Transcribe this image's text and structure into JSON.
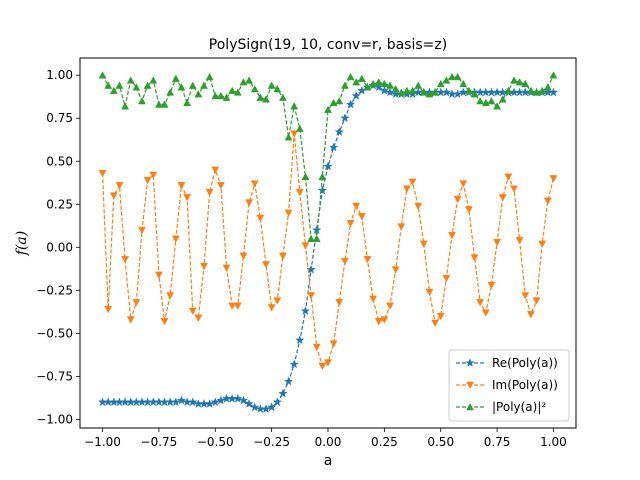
{
  "chart_data": {
    "type": "line",
    "title": "PolySign(19, 10, conv=r, basis=z)",
    "xlabel": "a",
    "ylabel": "f(a)",
    "xlim": [
      -1.1,
      1.1
    ],
    "ylim": [
      -1.05,
      1.1
    ],
    "xticks": [
      -1.0,
      -0.75,
      -0.5,
      -0.25,
      0.0,
      0.25,
      0.5,
      0.75,
      1.0
    ],
    "xtick_labels": [
      "−1.00",
      "−0.75",
      "−0.50",
      "−0.25",
      "0.00",
      "0.25",
      "0.50",
      "0.75",
      "1.00"
    ],
    "yticks": [
      -1.0,
      -0.75,
      -0.5,
      -0.25,
      0.0,
      0.25,
      0.5,
      0.75,
      1.0
    ],
    "ytick_labels": [
      "−1.00",
      "−0.75",
      "−0.50",
      "−0.25",
      "0.00",
      "0.25",
      "0.50",
      "0.75",
      "1.00"
    ],
    "grid": false,
    "legend_position": "lower right",
    "series": [
      {
        "name": "Re(Poly(a))",
        "color": "#1f77b4",
        "marker": "star",
        "linestyle": "dashed",
        "x": [
          -1.0,
          -0.975,
          -0.95,
          -0.925,
          -0.9,
          -0.875,
          -0.85,
          -0.825,
          -0.8,
          -0.775,
          -0.75,
          -0.725,
          -0.7,
          -0.675,
          -0.65,
          -0.625,
          -0.6,
          -0.575,
          -0.55,
          -0.525,
          -0.5,
          -0.475,
          -0.45,
          -0.425,
          -0.4,
          -0.375,
          -0.35,
          -0.325,
          -0.3,
          -0.275,
          -0.25,
          -0.225,
          -0.2,
          -0.175,
          -0.15,
          -0.125,
          -0.1,
          -0.075,
          -0.05,
          -0.025,
          0.0,
          0.025,
          0.05,
          0.075,
          0.1,
          0.125,
          0.15,
          0.175,
          0.2,
          0.225,
          0.25,
          0.275,
          0.3,
          0.325,
          0.35,
          0.375,
          0.4,
          0.425,
          0.45,
          0.475,
          0.5,
          0.525,
          0.55,
          0.575,
          0.6,
          0.625,
          0.65,
          0.675,
          0.7,
          0.725,
          0.75,
          0.775,
          0.8,
          0.825,
          0.85,
          0.875,
          0.9,
          0.925,
          0.95,
          0.975,
          1.0
        ],
        "y": [
          -0.9,
          -0.9,
          -0.9,
          -0.9,
          -0.9,
          -0.9,
          -0.9,
          -0.9,
          -0.9,
          -0.9,
          -0.9,
          -0.9,
          -0.9,
          -0.9,
          -0.89,
          -0.9,
          -0.9,
          -0.91,
          -0.91,
          -0.91,
          -0.9,
          -0.89,
          -0.88,
          -0.88,
          -0.88,
          -0.89,
          -0.91,
          -0.93,
          -0.94,
          -0.94,
          -0.93,
          -0.9,
          -0.85,
          -0.78,
          -0.68,
          -0.54,
          -0.37,
          -0.13,
          0.1,
          0.33,
          0.47,
          0.58,
          0.67,
          0.75,
          0.83,
          0.88,
          0.91,
          0.93,
          0.94,
          0.93,
          0.91,
          0.9,
          0.89,
          0.89,
          0.89,
          0.89,
          0.9,
          0.9,
          0.9,
          0.9,
          0.9,
          0.9,
          0.89,
          0.89,
          0.9,
          0.9,
          0.9,
          0.9,
          0.9,
          0.9,
          0.9,
          0.9,
          0.9,
          0.9,
          0.9,
          0.9,
          0.9,
          0.9,
          0.9,
          0.9,
          0.9
        ]
      },
      {
        "name": "Im(Poly(a))",
        "color": "#ff7f0e",
        "marker": "triangle_down",
        "linestyle": "dashed",
        "x": [
          -1.0,
          -0.975,
          -0.95,
          -0.925,
          -0.9,
          -0.875,
          -0.85,
          -0.825,
          -0.8,
          -0.775,
          -0.75,
          -0.725,
          -0.7,
          -0.675,
          -0.65,
          -0.625,
          -0.6,
          -0.575,
          -0.55,
          -0.525,
          -0.5,
          -0.475,
          -0.45,
          -0.425,
          -0.4,
          -0.375,
          -0.35,
          -0.325,
          -0.3,
          -0.275,
          -0.25,
          -0.225,
          -0.2,
          -0.175,
          -0.15,
          -0.125,
          -0.1,
          -0.075,
          -0.05,
          -0.025,
          0.0,
          0.025,
          0.05,
          0.075,
          0.1,
          0.125,
          0.15,
          0.175,
          0.2,
          0.225,
          0.25,
          0.275,
          0.3,
          0.325,
          0.35,
          0.375,
          0.4,
          0.425,
          0.45,
          0.475,
          0.5,
          0.525,
          0.55,
          0.575,
          0.6,
          0.625,
          0.65,
          0.675,
          0.7,
          0.725,
          0.75,
          0.775,
          0.8,
          0.825,
          0.85,
          0.875,
          0.9,
          0.925,
          0.95,
          0.975,
          1.0
        ],
        "y": [
          0.43,
          -0.36,
          0.3,
          0.36,
          -0.07,
          -0.42,
          -0.32,
          0.1,
          0.39,
          0.42,
          -0.16,
          -0.43,
          -0.28,
          0.05,
          0.36,
          0.29,
          -0.37,
          -0.41,
          -0.11,
          0.32,
          0.45,
          0.36,
          -0.12,
          -0.34,
          -0.34,
          -0.05,
          0.26,
          0.37,
          0.17,
          -0.1,
          -0.35,
          -0.31,
          -0.05,
          0.2,
          0.66,
          0.32,
          0.01,
          -0.28,
          -0.58,
          -0.69,
          -0.67,
          -0.56,
          -0.32,
          -0.08,
          0.14,
          0.24,
          0.18,
          -0.07,
          -0.3,
          -0.43,
          -0.42,
          -0.34,
          -0.13,
          0.12,
          0.34,
          0.38,
          0.24,
          0.02,
          -0.26,
          -0.44,
          -0.4,
          -0.18,
          0.07,
          0.28,
          0.37,
          0.22,
          -0.06,
          -0.32,
          -0.38,
          -0.22,
          0.03,
          0.29,
          0.41,
          0.34,
          0.04,
          -0.28,
          -0.39,
          -0.31,
          0.02,
          0.27,
          0.4
        ]
      },
      {
        "name": "|Poly(a)|²",
        "color": "#2ca02c",
        "marker": "triangle_up",
        "linestyle": "dashed",
        "x": [
          -1.0,
          -0.975,
          -0.95,
          -0.925,
          -0.9,
          -0.875,
          -0.85,
          -0.825,
          -0.8,
          -0.775,
          -0.75,
          -0.725,
          -0.7,
          -0.675,
          -0.65,
          -0.625,
          -0.6,
          -0.575,
          -0.55,
          -0.525,
          -0.5,
          -0.475,
          -0.45,
          -0.425,
          -0.4,
          -0.375,
          -0.35,
          -0.325,
          -0.3,
          -0.275,
          -0.25,
          -0.225,
          -0.2,
          -0.175,
          -0.15,
          -0.125,
          -0.1,
          -0.075,
          -0.05,
          -0.025,
          0.0,
          0.025,
          0.05,
          0.075,
          0.1,
          0.125,
          0.15,
          0.175,
          0.2,
          0.225,
          0.25,
          0.275,
          0.3,
          0.325,
          0.35,
          0.375,
          0.4,
          0.425,
          0.45,
          0.475,
          0.5,
          0.525,
          0.55,
          0.575,
          0.6,
          0.625,
          0.65,
          0.675,
          0.7,
          0.725,
          0.75,
          0.775,
          0.8,
          0.825,
          0.85,
          0.875,
          0.9,
          0.925,
          0.95,
          0.975,
          1.0
        ],
        "y": [
          1.0,
          0.94,
          0.91,
          0.94,
          0.82,
          0.97,
          0.93,
          0.85,
          0.94,
          0.97,
          0.83,
          0.83,
          0.9,
          0.98,
          0.93,
          0.84,
          0.94,
          0.89,
          0.94,
          0.99,
          0.88,
          0.88,
          0.87,
          0.91,
          0.9,
          0.96,
          0.97,
          0.92,
          0.87,
          0.86,
          0.94,
          0.92,
          0.87,
          0.64,
          0.82,
          0.69,
          0.41,
          0.05,
          0.05,
          0.41,
          0.8,
          0.84,
          0.85,
          0.94,
          0.99,
          0.96,
          0.98,
          0.93,
          0.95,
          0.96,
          0.95,
          0.94,
          0.92,
          0.9,
          0.91,
          0.91,
          0.94,
          0.9,
          0.89,
          0.9,
          0.95,
          0.97,
          0.99,
          0.99,
          0.95,
          0.91,
          0.89,
          0.85,
          0.84,
          0.85,
          0.82,
          0.86,
          0.91,
          0.97,
          0.96,
          0.95,
          0.91,
          0.9,
          0.91,
          0.93,
          1.0
        ]
      }
    ]
  }
}
